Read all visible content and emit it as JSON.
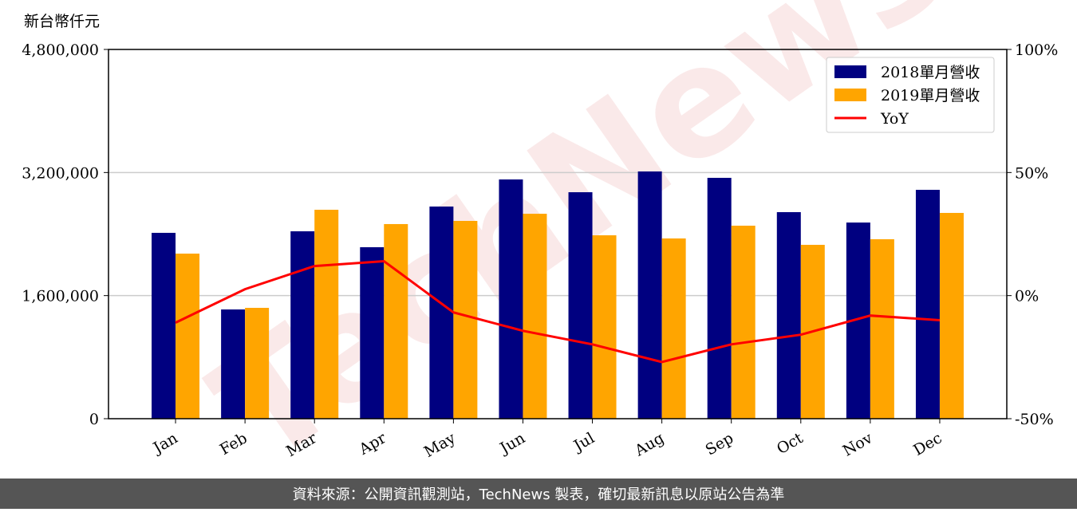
{
  "chart_data": {
    "type": "bar_line",
    "y_label": "新台幣仟元",
    "watermark": "TechNews",
    "categories": [
      "Jan",
      "Feb",
      "Mar",
      "Apr",
      "May",
      "Jun",
      "Jul",
      "Aug",
      "Sep",
      "Oct",
      "Nov",
      "Dec"
    ],
    "series": [
      {
        "name": "2018單月營收",
        "type": "bar",
        "color": "#000080",
        "values": [
          2416000,
          1420000,
          2436000,
          2229000,
          2758000,
          3110000,
          2944000,
          3214000,
          3131000,
          2685000,
          2550000,
          2975000
        ]
      },
      {
        "name": "2019單月營收",
        "type": "bar",
        "color": "#ffa500",
        "values": [
          2146000,
          1441000,
          2716000,
          2530000,
          2571000,
          2664000,
          2384000,
          2343000,
          2509000,
          2260000,
          2333000,
          2675000
        ]
      },
      {
        "name": "YoY",
        "type": "line",
        "axis": "y2",
        "color": "#ff0000",
        "values": [
          -11,
          2.6,
          12,
          14,
          -6.8,
          -14.3,
          -19.8,
          -27,
          -19.8,
          -15.9,
          -8.1,
          -10
        ]
      }
    ],
    "ylim": [
      0,
      4800000
    ],
    "yticks": [
      0,
      {
        "value": 1600000,
        "label": "1,600,000"
      },
      {
        "value": 3200000,
        "label": "3,200,000"
      },
      {
        "value": 4800000,
        "label": "4,800,000"
      }
    ],
    "y2lim": [
      -50,
      100
    ],
    "y2ticks": [
      {
        "value": -50,
        "label": "-50%"
      },
      {
        "value": 0,
        "label": "0%"
      },
      {
        "value": 50,
        "label": "50%"
      },
      {
        "value": 100,
        "label": "100%"
      }
    ],
    "grid": true,
    "legend": "upper right",
    "footer": "資料來源：公開資訊觀測站，TechNews 製表，確切最新訊息以原站公告為準"
  }
}
